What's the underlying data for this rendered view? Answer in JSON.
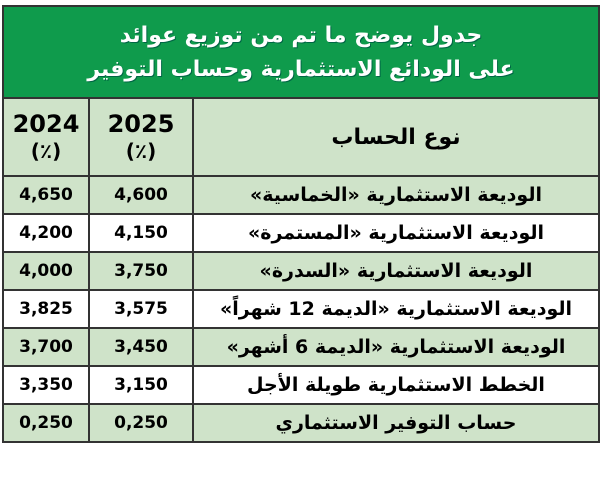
{
  "title": {
    "line1": "جدول يوضح ما تم من توزيع عوائد",
    "line2": "على الودائع الاستثمارية وحساب التوفير"
  },
  "columns": {
    "y2024": "2024",
    "y2024_unit": "(٪)",
    "y2025": "2025",
    "y2025_unit": "(٪)",
    "account": "نوع الحساب"
  },
  "rows": [
    {
      "account": "الوديعة الاستثمارية «الخماسية»",
      "v2025": "4,600",
      "v2024": "4,650"
    },
    {
      "account": "الوديعة الاستثمارية «المستمرة»",
      "v2025": "4,150",
      "v2024": "4,200"
    },
    {
      "account": "الوديعة الاستثمارية «السدرة»",
      "v2025": "3,750",
      "v2024": "4,000"
    },
    {
      "account": "الوديعة الاستثمارية «الديمة 12 شهراً»",
      "v2025": "3,575",
      "v2024": "3,825"
    },
    {
      "account": "الوديعة الاستثمارية «الديمة 6 أشهر»",
      "v2025": "3,450",
      "v2024": "3,700"
    },
    {
      "account": "الخطط الاستثمارية طويلة الأجل",
      "v2025": "3,150",
      "v2024": "3,350"
    },
    {
      "account": "حساب التوفير الاستثماري",
      "v2025": "0,250",
      "v2024": "0,250"
    }
  ],
  "colors": {
    "header_green": "#0f9b4c",
    "row_green": "#cfe3c9"
  }
}
